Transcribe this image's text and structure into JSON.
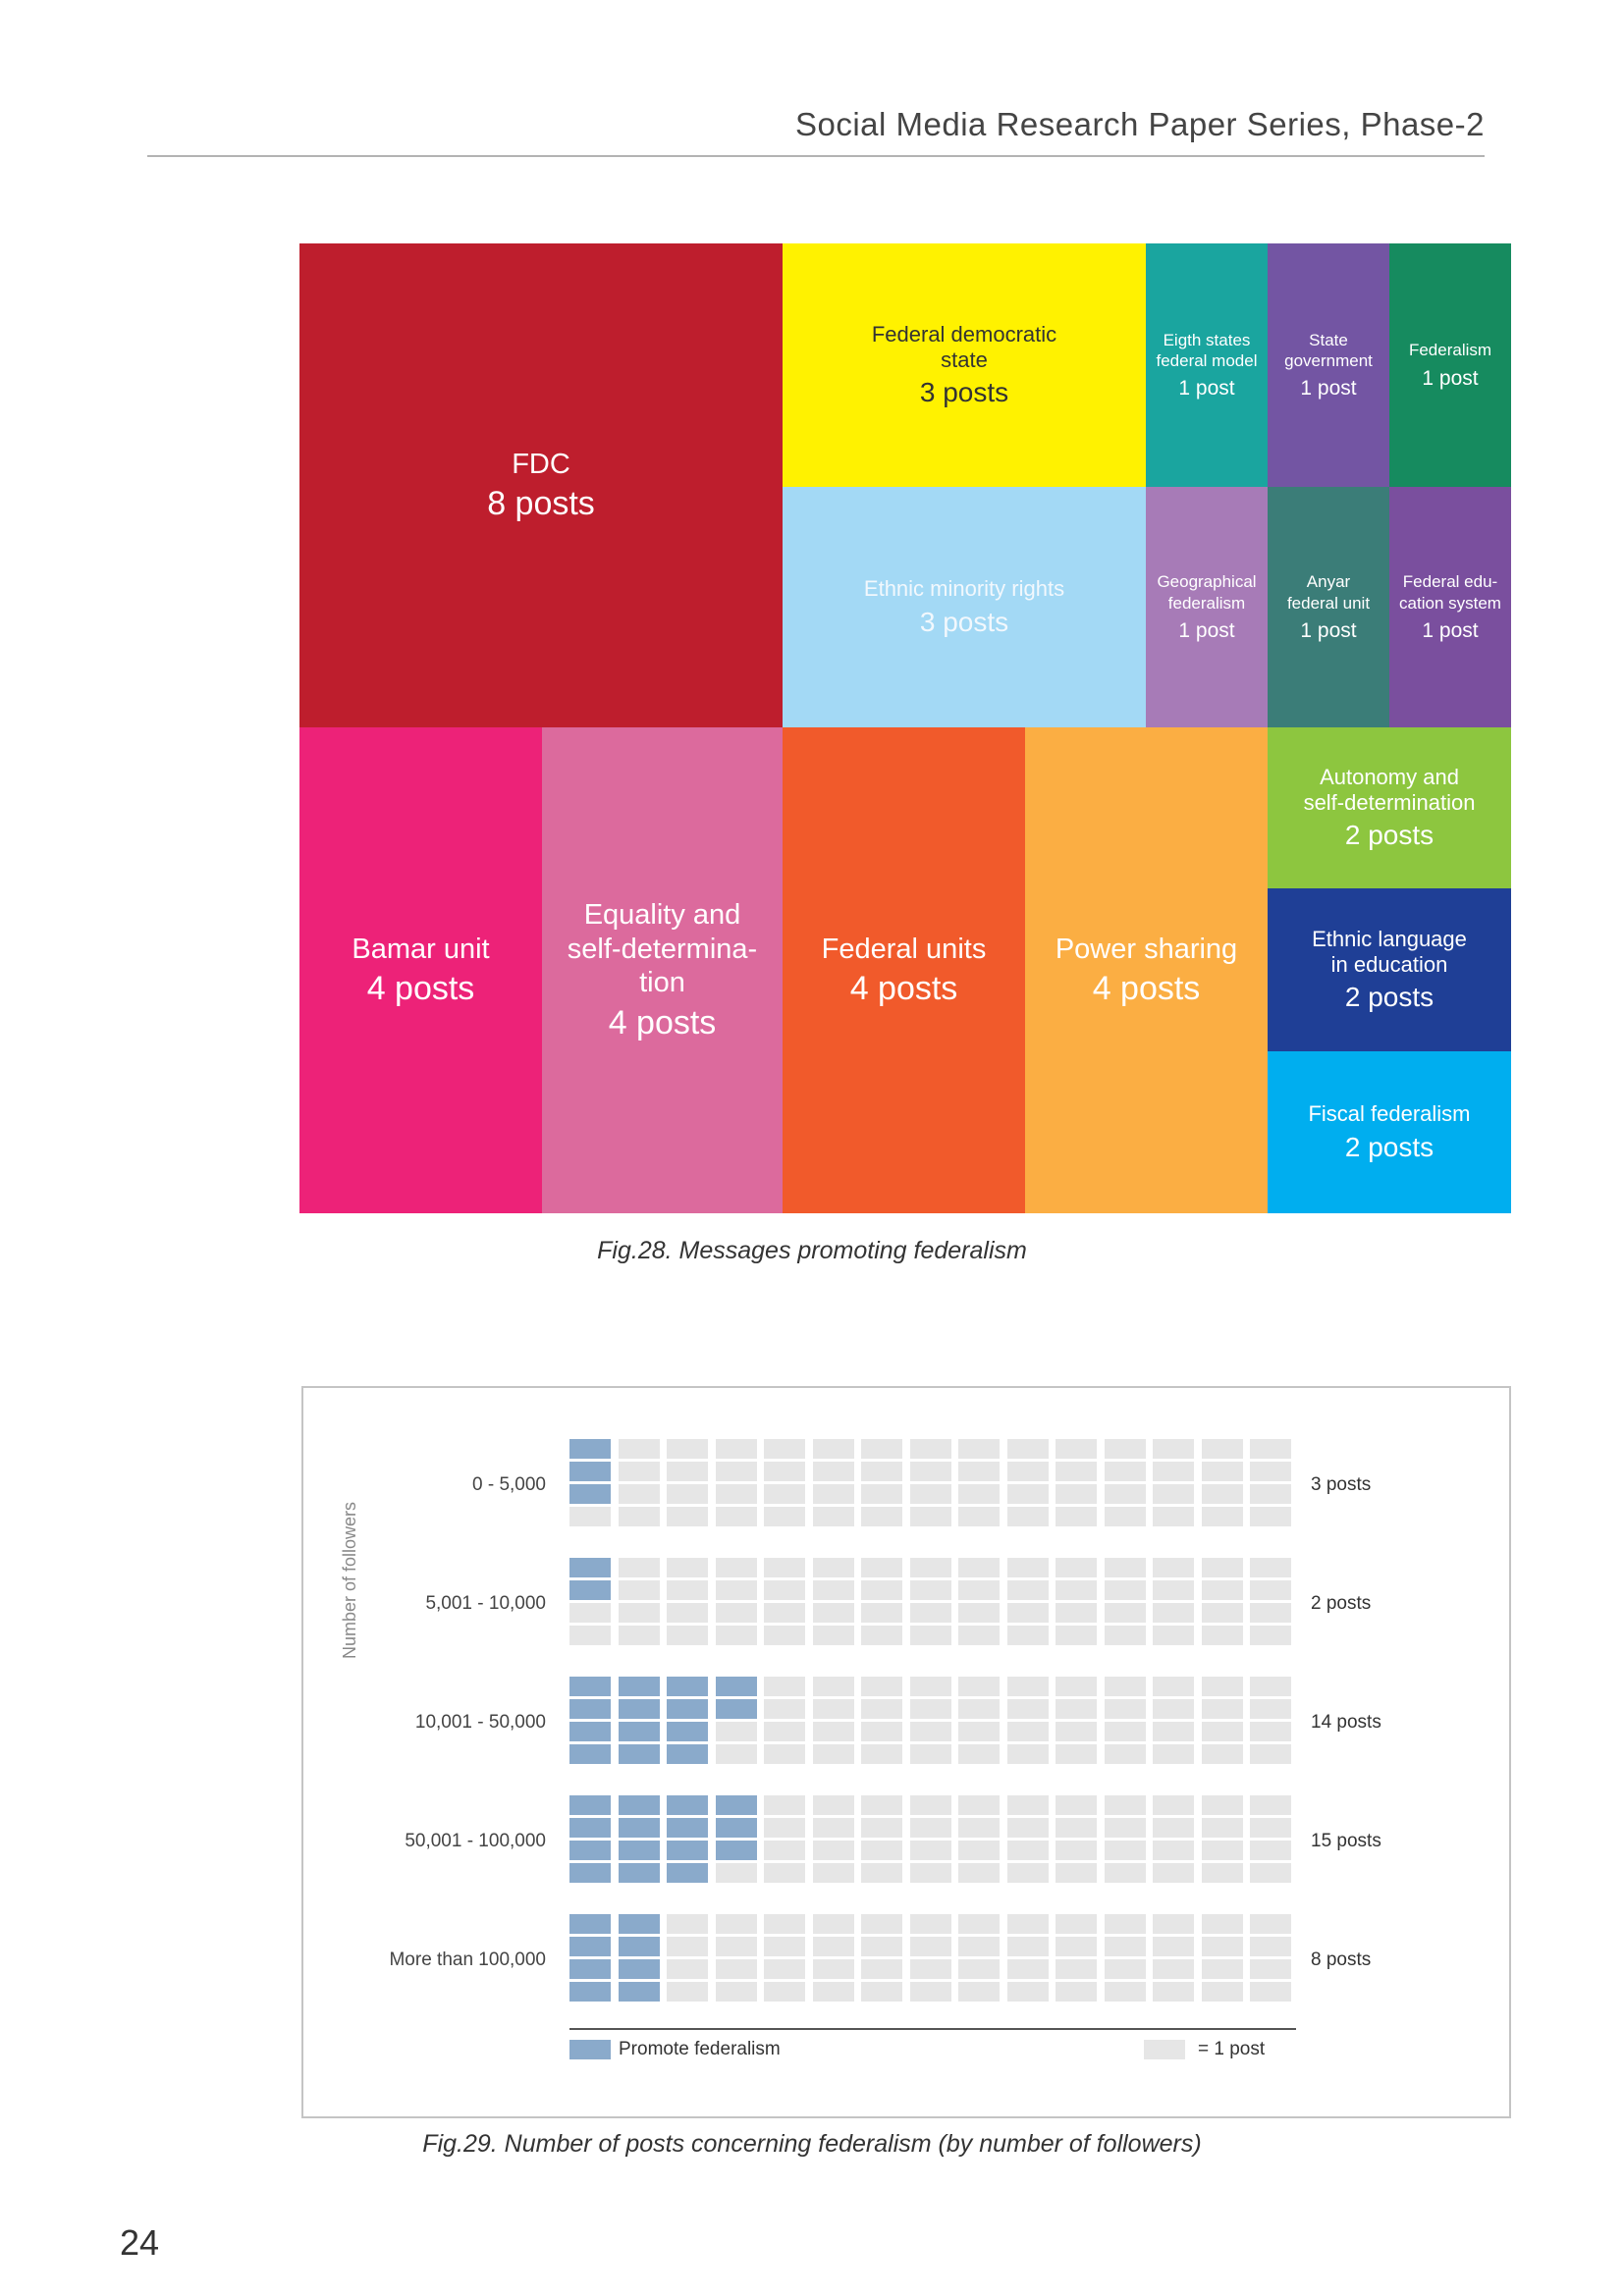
{
  "header": {
    "title": "Social Media Research Paper Series, Phase-2"
  },
  "treemap": {
    "caption": "Fig.28. Messages promoting federalism",
    "tiles": [
      {
        "label": "FDC",
        "count": "8 posts",
        "color": "#be1e2d"
      },
      {
        "label": "Federal democratic\nstate",
        "count": "3 posts",
        "color": "#fff200"
      },
      {
        "label": "Ethnic minority rights",
        "count": "3 posts",
        "color": "#a3d9f5"
      },
      {
        "label": "Eigth states\nfederal model",
        "count": "1 post",
        "color": "#1aa59f"
      },
      {
        "label": "State\ngovernment",
        "count": "1 post",
        "color": "#7355a3"
      },
      {
        "label": "Federalism",
        "count": "1 post",
        "color": "#168b5f"
      },
      {
        "label": "Geographical\nfederalism",
        "count": "1 post",
        "color": "#a77bb7"
      },
      {
        "label": "Anyar\nfederal unit",
        "count": "1 post",
        "color": "#3b7d78"
      },
      {
        "label": "Federal edu-\ncation system",
        "count": "1 post",
        "color": "#7a4f9e"
      },
      {
        "label": "Bamar unit",
        "count": "4 posts",
        "color": "#ed2278"
      },
      {
        "label": "Equality and\nself-determina-\ntion",
        "count": "4 posts",
        "color": "#dc6a9d"
      },
      {
        "label": "Federal units",
        "count": "4 posts",
        "color": "#f15a2b"
      },
      {
        "label": "Power sharing",
        "count": "4 posts",
        "color": "#fbae43"
      },
      {
        "label": "Autonomy and\nself-determination",
        "count": "2 posts",
        "color": "#8dc63f"
      },
      {
        "label": "Ethnic language\nin education",
        "count": "2 posts",
        "color": "#1f3f96"
      },
      {
        "label": "Fiscal federalism",
        "count": "2 posts",
        "color": "#00aeef"
      }
    ]
  },
  "waffle": {
    "caption": "Fig.29. Number of posts concerning federalism (by number of followers)",
    "y_axis_label": "Number of followers",
    "rows": [
      {
        "category": "0 - 5,000",
        "posts": 3,
        "posts_label": "3 posts"
      },
      {
        "category": "5,001 - 10,000",
        "posts": 2,
        "posts_label": "2 posts"
      },
      {
        "category": "10,001 - 50,000",
        "posts": 14,
        "posts_label": "14 posts"
      },
      {
        "category": "50,001 - 100,000",
        "posts": 15,
        "posts_label": "15 posts"
      },
      {
        "category": "More than 100,000",
        "posts": 8,
        "posts_label": "8 posts"
      }
    ],
    "legend": {
      "promote_label": "Promote federalism",
      "promote_color": "#8aaacb",
      "unit_label": "= 1 post",
      "unit_color": "#e6e6e6"
    }
  },
  "chart_data": {
    "type": "bar",
    "categories": [
      "0 - 5,000",
      "5,001 - 10,000",
      "10,001 - 50,000",
      "50,001 - 100,000",
      "More than 100,000"
    ],
    "values": [
      3,
      2,
      14,
      15,
      8
    ],
    "ylabel": "Number of followers"
  },
  "page": {
    "number": "24"
  }
}
